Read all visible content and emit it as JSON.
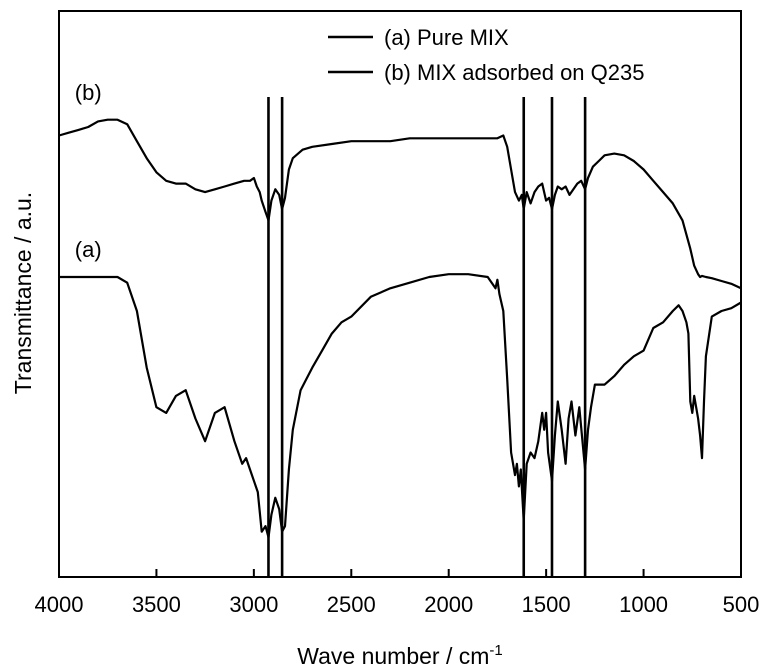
{
  "chart_data": {
    "type": "line",
    "xlabel": "Wave number / cm",
    "xlabel_sup": "-1",
    "ylabel": "Transmittance / a.u.",
    "xlim": [
      4000,
      500
    ],
    "x_reversed": true,
    "ylim": [
      0,
      100
    ],
    "y_ticks_shown": false,
    "grid": false,
    "legend_position": "top-right",
    "x_ticks": [
      4000,
      3500,
      3000,
      2500,
      2000,
      1500,
      1000,
      500
    ],
    "x_tick_labels": [
      "4000",
      "3500",
      "3000",
      "2500",
      "2000",
      "1500",
      "1000",
      "500"
    ],
    "reference_lines": [
      2925,
      2855,
      1615,
      1470,
      1300
    ],
    "curve_labels": [
      {
        "series": "(b) MIX adsorbed on Q235",
        "text": "(b)",
        "x": 3850,
        "y": 84.3
      },
      {
        "series": "(a) Pure MIX",
        "text": "(a)",
        "x": 3850,
        "y": 56.5
      }
    ],
    "series": [
      {
        "name": "(a) Pure MIX",
        "x": [
          4000,
          3950,
          3900,
          3850,
          3800,
          3750,
          3700,
          3650,
          3600,
          3550,
          3500,
          3450,
          3400,
          3350,
          3300,
          3250,
          3200,
          3150,
          3100,
          3060,
          3040,
          3020,
          3000,
          2980,
          2960,
          2940,
          2925,
          2910,
          2890,
          2870,
          2855,
          2840,
          2820,
          2800,
          2760,
          2700,
          2650,
          2600,
          2550,
          2500,
          2400,
          2300,
          2200,
          2100,
          2000,
          1900,
          1800,
          1760,
          1750,
          1740,
          1720,
          1700,
          1680,
          1660,
          1650,
          1640,
          1630,
          1615,
          1600,
          1580,
          1560,
          1540,
          1520,
          1510,
          1500,
          1490,
          1470,
          1455,
          1440,
          1420,
          1400,
          1385,
          1370,
          1350,
          1330,
          1300,
          1285,
          1270,
          1250,
          1200,
          1150,
          1100,
          1050,
          1000,
          950,
          900,
          850,
          820,
          800,
          780,
          770,
          760,
          750,
          740,
          720,
          710,
          700,
          690,
          680,
          650,
          600,
          550,
          500
        ],
        "values": [
          53.0,
          53.0,
          53.0,
          53.0,
          53.0,
          53.0,
          53.0,
          52.0,
          47.0,
          37.0,
          30.0,
          29.0,
          32.0,
          33.0,
          28.0,
          24.0,
          29.0,
          30.0,
          24.0,
          20.0,
          21.0,
          19.0,
          17.0,
          15.0,
          8.0,
          9.0,
          7.0,
          11.0,
          14.0,
          12.0,
          8.0,
          9.0,
          19.0,
          26.0,
          33.0,
          37.0,
          40.0,
          43.0,
          45.0,
          46.0,
          49.5,
          51.0,
          52.0,
          53.0,
          53.5,
          53.5,
          53.0,
          51.0,
          52.5,
          50.0,
          47.0,
          35.0,
          22.0,
          18.0,
          20.0,
          16.0,
          19.0,
          10.0,
          20.0,
          22.0,
          21.0,
          24.0,
          29.0,
          26.0,
          29.0,
          22.0,
          17.0,
          25.0,
          31.0,
          26.0,
          20.0,
          28.0,
          31.0,
          25.0,
          30.0,
          19.0,
          26.0,
          30.0,
          34.0,
          34.0,
          35.5,
          37.5,
          39.0,
          40.0,
          44.0,
          45.0,
          47.0,
          48.0,
          47.0,
          45.0,
          43.0,
          31.0,
          29.0,
          32.0,
          28.0,
          25.0,
          21.0,
          31.0,
          39.0,
          46.0,
          47.0,
          47.5,
          48.5
        ]
      },
      {
        "name": "(b) MIX adsorbed on Q235",
        "x": [
          4000,
          3950,
          3900,
          3850,
          3800,
          3750,
          3700,
          3650,
          3600,
          3550,
          3500,
          3450,
          3400,
          3350,
          3300,
          3250,
          3200,
          3150,
          3100,
          3050,
          3020,
          3000,
          2985,
          2970,
          2960,
          2940,
          2925,
          2910,
          2890,
          2870,
          2855,
          2840,
          2820,
          2800,
          2750,
          2700,
          2600,
          2500,
          2400,
          2300,
          2200,
          2100,
          2000,
          1900,
          1800,
          1750,
          1720,
          1700,
          1680,
          1660,
          1640,
          1625,
          1615,
          1600,
          1580,
          1560,
          1540,
          1520,
          1500,
          1485,
          1470,
          1455,
          1440,
          1420,
          1400,
          1380,
          1360,
          1340,
          1320,
          1300,
          1285,
          1260,
          1230,
          1200,
          1150,
          1100,
          1050,
          1000,
          950,
          900,
          850,
          800,
          760,
          740,
          720,
          710,
          700,
          680,
          650,
          600,
          550,
          500
        ],
        "values": [
          78.0,
          78.5,
          79.0,
          79.5,
          80.5,
          80.8,
          80.8,
          80.0,
          77.0,
          74.0,
          71.5,
          70.0,
          69.5,
          69.5,
          68.5,
          68.0,
          68.5,
          69.0,
          69.5,
          70.0,
          70.0,
          70.5,
          69.0,
          68.0,
          66.5,
          64.5,
          63.0,
          66.5,
          68.5,
          67.5,
          65.0,
          67.0,
          72.0,
          74.0,
          75.5,
          76.0,
          76.5,
          77.0,
          77.0,
          77.0,
          77.5,
          77.5,
          77.5,
          77.5,
          77.5,
          77.5,
          78.0,
          76.0,
          72.0,
          68.0,
          66.5,
          67.5,
          65.0,
          68.0,
          66.0,
          68.0,
          69.0,
          69.5,
          66.5,
          67.0,
          65.0,
          67.5,
          69.0,
          68.5,
          69.0,
          67.5,
          68.5,
          69.5,
          70.0,
          68.5,
          70.5,
          72.5,
          73.5,
          74.5,
          74.8,
          74.5,
          73.5,
          72.0,
          70.0,
          68.0,
          66.0,
          63.0,
          58.0,
          55.0,
          53.5,
          53.0,
          53.2,
          53.0,
          52.8,
          52.3,
          51.8,
          51.0
        ]
      }
    ]
  }
}
